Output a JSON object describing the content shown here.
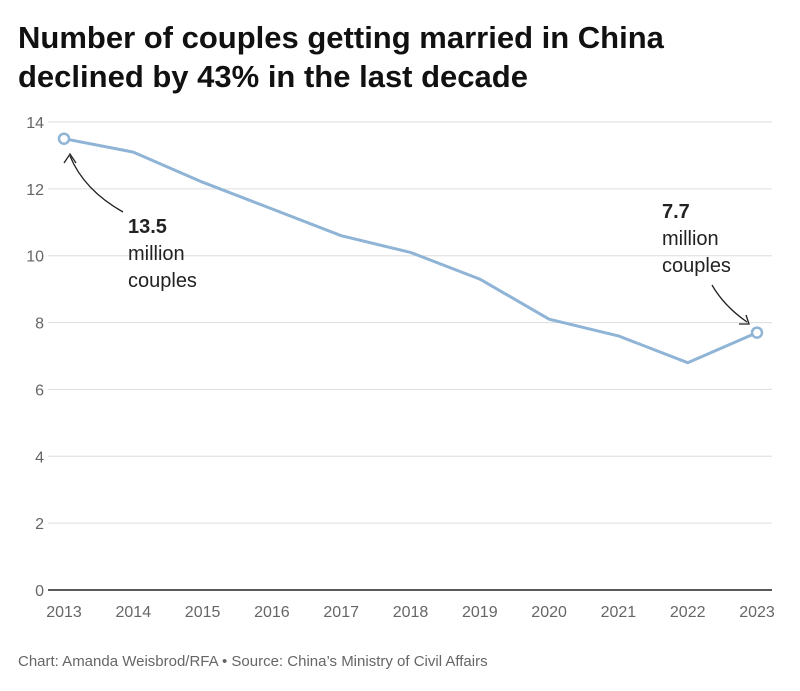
{
  "title": "Number of couples getting married in China declined by 43% in the last decade",
  "footer": "Chart: Amanda Weisbrod/RFA • Source: China’s Ministry of Civil Affairs",
  "colors": {
    "line": "#8fb4d6",
    "grid": "#dddddd",
    "axis": "#222222",
    "tick_text": "#666666"
  },
  "chart_data": {
    "type": "line",
    "x": [
      2013,
      2014,
      2015,
      2016,
      2017,
      2018,
      2019,
      2020,
      2021,
      2022,
      2023
    ],
    "y": [
      13.5,
      13.1,
      12.2,
      11.4,
      10.6,
      10.1,
      9.3,
      8.1,
      7.6,
      6.8,
      7.7
    ],
    "xlabel": "",
    "ylabel": "",
    "ylim": [
      0,
      14
    ],
    "yticks": [
      0,
      2,
      4,
      6,
      8,
      10,
      12,
      14
    ],
    "grid": true,
    "annotations": [
      {
        "x": 2013,
        "y": 13.5,
        "value": "13.5",
        "lines": [
          "million",
          "couples"
        ]
      },
      {
        "x": 2023,
        "y": 7.7,
        "value": "7.7",
        "lines": [
          "million",
          "couples"
        ]
      }
    ]
  }
}
